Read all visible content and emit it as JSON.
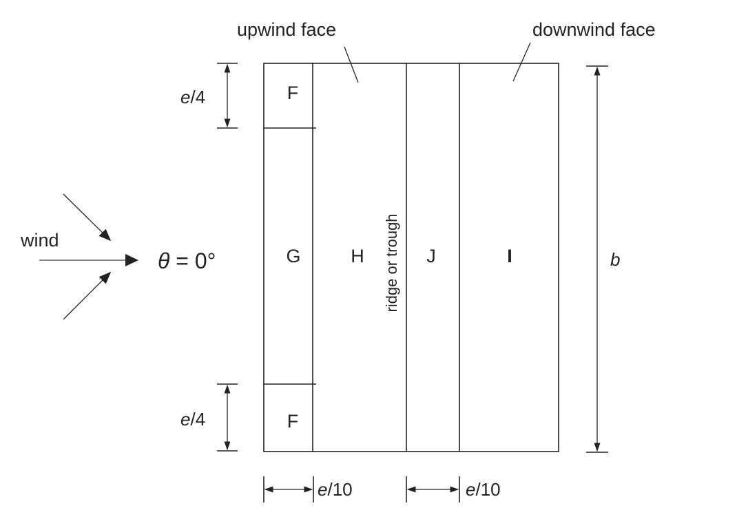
{
  "labels": {
    "upwind_face": "upwind face",
    "downwind_face": "downwind face",
    "wind": "wind",
    "theta_symbol": "θ",
    "theta_value": " = 0°",
    "ridge": "ridge or trough",
    "b": "b"
  },
  "zones": {
    "f_top": "F",
    "g": "G",
    "h": "H",
    "j": "J",
    "i": "I",
    "f_bottom": "F"
  },
  "dimensions": {
    "top_var": "e",
    "top_rest": "/4",
    "bottom_var": "e",
    "bottom_rest": "/4",
    "left_width_var": "e",
    "left_width_rest": "/10",
    "ridge_width_var": "e",
    "ridge_width_rest": "/10"
  }
}
